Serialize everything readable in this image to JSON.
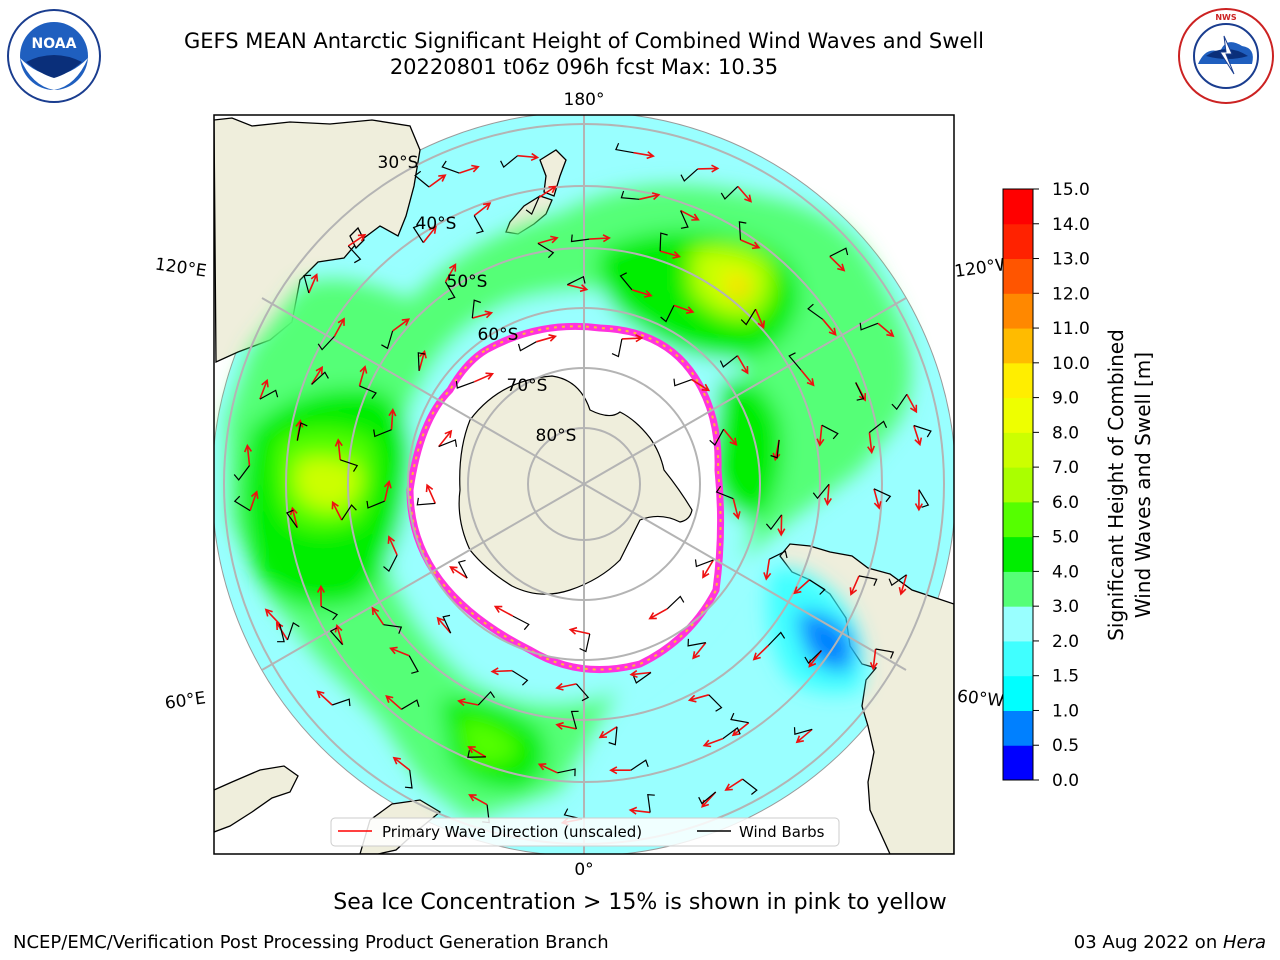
{
  "header": {
    "title": "GEFS MEAN Antarctic Significant Height of Combined Wind Waves and Swell",
    "subtitle": "20220801 t06z 096h fcst   Max: 10.35"
  },
  "logos": {
    "left_text": "NOAA",
    "left_ring_text": "NATIONAL OCEANIC AND ATMOSPHERIC ADMINISTRATION · U.S. DEPARTMENT OF COMMERCE",
    "right_ring_text": "NATIONAL WEATHER SERVICE"
  },
  "map": {
    "lon_labels": {
      "top": "180°",
      "bottom": "0°",
      "upper_left": "120°E",
      "upper_right": "120°W",
      "lower_left": "60°E",
      "lower_right": "60°W"
    },
    "lat_labels": [
      "30°S",
      "40°S",
      "50°S",
      "60°S",
      "70°S",
      "80°S"
    ],
    "legend": {
      "wave_label": "Primary Wave Direction (unscaled)",
      "barb_label": "Wind Barbs"
    }
  },
  "colorbar": {
    "label_line1": "Significant Height of Combined",
    "label_line2": "Wind Waves and Swell [m]",
    "ticks": [
      "0.0",
      "0.5",
      "1.0",
      "1.5",
      "2.0",
      "3.0",
      "4.0",
      "5.0",
      "6.0",
      "7.0",
      "8.0",
      "9.0",
      "10.0",
      "11.0",
      "12.0",
      "13.0",
      "14.0",
      "15.0"
    ],
    "colors": [
      "#0000ff",
      "#0080ff",
      "#00ffff",
      "#40ffff",
      "#99ffff",
      "#55ff77",
      "#00ee00",
      "#55ff00",
      "#aaff00",
      "#ccff00",
      "#eeff00",
      "#ffee00",
      "#ffbb00",
      "#ff8800",
      "#ff5500",
      "#ff2200",
      "#ff0000"
    ]
  },
  "caption": "Sea Ice Concentration > 15% is shown in pink to yellow",
  "footer": {
    "left": "NCEP/EMC/Verification Post Processing Product Generation Branch",
    "right_date": "03 Aug 2022 on ",
    "right_host": "Hera"
  }
}
